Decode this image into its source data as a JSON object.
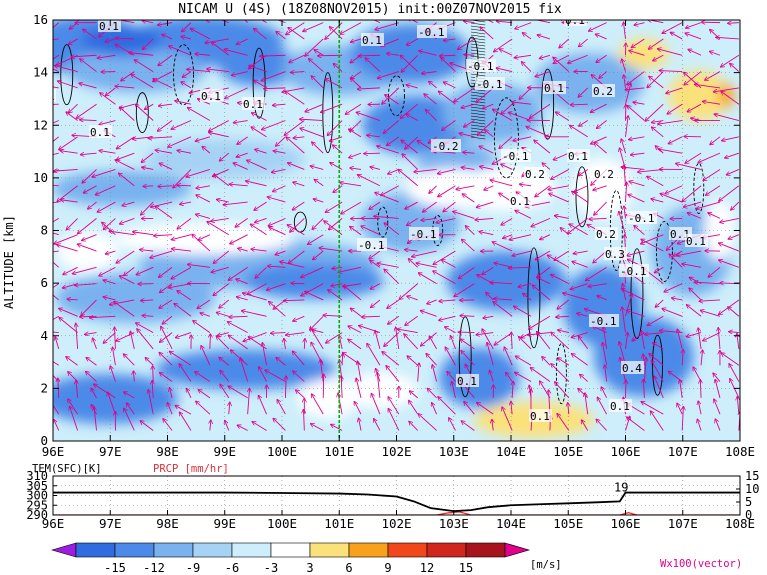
{
  "title": "NICAM U (4S) (18Z08NOV2015) init:00Z07NOV2015 fix",
  "colors": {
    "axis": "#000000",
    "vector": "#e0008c",
    "marker_line": "#00b000",
    "precip_label": "#e0303a",
    "precip_line": "#ff2020",
    "grid": "#808080"
  },
  "colorbar": {
    "unit": "[m/s]",
    "tick_labels": [
      "-15",
      "-12",
      "-9",
      "-6",
      "-3",
      "3",
      "6",
      "9",
      "12",
      "15"
    ],
    "bin_colors": [
      "#9b1de0",
      "#2f6ce0",
      "#4b8ae8",
      "#79b2ef",
      "#a6d3f5",
      "#cdeefa",
      "#ffffff",
      "#fbe17a",
      "#f8a21c",
      "#f0481c",
      "#d0261c",
      "#a8141c",
      "#e0008c"
    ]
  },
  "vector_label": "Wx100(vector)",
  "chart_data": [
    {
      "type": "heatmap",
      "name": "main",
      "xlabel": "",
      "ylabel": "ALTITUDE [km]",
      "xlim": [
        96,
        108
      ],
      "ylim": [
        0,
        16
      ],
      "x_ticks": [
        "96E",
        "97E",
        "98E",
        "99E",
        "100E",
        "101E",
        "102E",
        "103E",
        "104E",
        "105E",
        "106E",
        "107E",
        "108E"
      ],
      "y_ticks": [
        "0",
        "2",
        "4",
        "6",
        "8",
        "10",
        "12",
        "14",
        "16"
      ],
      "marker_lon": 101,
      "contour_labels": [
        "0.1",
        "0.1",
        "-0.1",
        "0.1",
        "0.1",
        "0.1",
        "0.2",
        "0.1",
        "0.1",
        "0.1",
        "1",
        "-0.1",
        "-0.2",
        "-0.1",
        "0.1",
        "0.2",
        "0.2",
        "0.1",
        "-0.1",
        "-0.1",
        "-0.1",
        "-0.1",
        "0.1",
        "0.2",
        "0.3",
        "-0.1",
        "-0.1",
        "0.1",
        "0.1",
        "0.1",
        "0.4"
      ]
    },
    {
      "type": "line",
      "name": "surface",
      "left_label": "TEM(SFC)[K]",
      "right_label": "PRCP [mm/hr]",
      "xlim": [
        96,
        108
      ],
      "x_ticks": [
        "96E",
        "97E",
        "98E",
        "99E",
        "100E",
        "101E",
        "102E",
        "103E",
        "104E",
        "105E",
        "106E",
        "107E",
        "108E"
      ],
      "left_ticks": [
        "290",
        "295",
        "300",
        "305",
        "310"
      ],
      "right_ticks": [
        "0",
        "5",
        "10",
        "15"
      ],
      "left_range": [
        290,
        310
      ],
      "right_range": [
        0,
        15
      ],
      "annotation": "19",
      "series": [
        {
          "x": [
            96,
            97,
            98,
            99,
            100,
            101,
            101.5,
            102,
            102.3,
            102.6,
            103,
            103.3,
            103.6,
            104,
            104.5,
            105,
            105.5,
            105.9,
            106,
            107,
            108
          ],
          "values": [
            301.5,
            301.5,
            301.5,
            301.5,
            301.3,
            301,
            300.5,
            299.5,
            297,
            293.5,
            292,
            292.5,
            294,
            295,
            295.5,
            296,
            296.5,
            297,
            301.5,
            301.5,
            301.5
          ]
        },
        {
          "x": [
            96,
            102.7,
            102.9,
            103.1,
            103.3,
            105.9,
            106.05,
            106.2,
            108
          ],
          "values": [
            0,
            0,
            0.8,
            1.2,
            0,
            0,
            0.9,
            0,
            0
          ]
        }
      ]
    }
  ]
}
